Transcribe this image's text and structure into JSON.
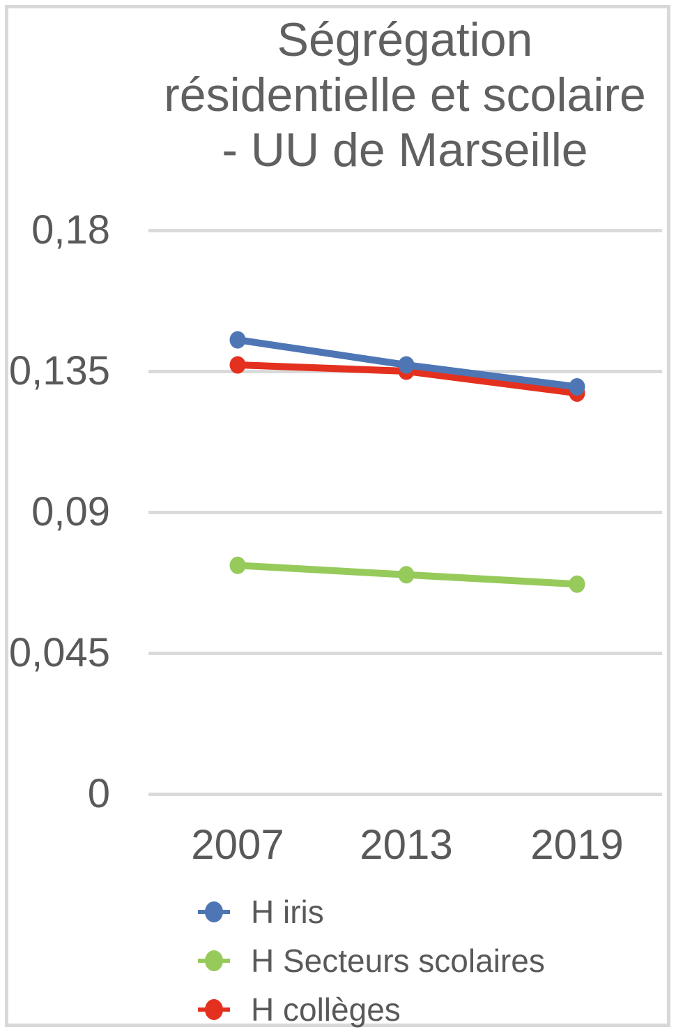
{
  "frame": {
    "border_color": "#d8d8d8",
    "background": "#ffffff"
  },
  "chart_data": {
    "type": "line",
    "title": "Ségrégation résidentielle et scolaire - UU de Marseille",
    "title_lines": [
      "Ségrégation",
      "résidentielle et scolaire",
      "- UU de Marseille"
    ],
    "categories": [
      "2007",
      "2013",
      "2019"
    ],
    "series": [
      {
        "name": "H iris",
        "color": "#4E76B4",
        "values": [
          0.145,
          0.137,
          0.13
        ]
      },
      {
        "name": "H Secteurs scolaires",
        "color": "#96CA5B",
        "values": [
          0.073,
          0.07,
          0.067
        ]
      },
      {
        "name": "H collèges",
        "color": "#E4311F",
        "values": [
          0.137,
          0.135,
          0.128
        ]
      }
    ],
    "y_axis": {
      "min": 0,
      "max": 0.18,
      "tick_values": [
        0.18,
        0.135,
        0.09,
        0.045,
        0
      ],
      "tick_labels": [
        "0,18",
        "0,135",
        "0,09",
        "0,045",
        "0"
      ],
      "decimal_separator": ","
    },
    "x_axis": {
      "tick_labels": [
        "2007",
        "2013",
        "2019"
      ]
    },
    "grid": true,
    "legend_position": "bottom",
    "legend": [
      "H iris",
      "H Secteurs scolaires",
      "H collèges"
    ],
    "colors": {
      "text": "#595959",
      "title": "#606060",
      "grid": "#dadada"
    }
  }
}
